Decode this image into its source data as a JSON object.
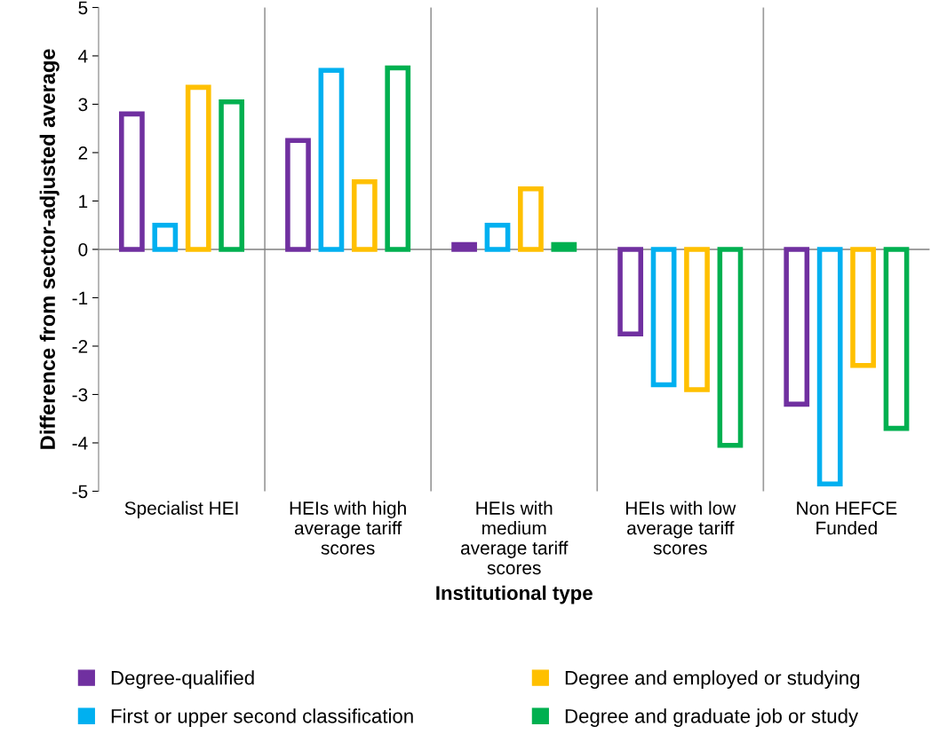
{
  "chart_data": {
    "type": "bar",
    "xlabel": "Institutional type",
    "ylabel": "Difference from sector-adjusted average",
    "categories": [
      "Specialist HEI",
      "HEIs with high\naverage tariff\nscores",
      "HEIs with\nmedium\naverage tariff\nscores",
      "HEIs with low\naverage tariff\nscores",
      "Non HEFCE\nFunded"
    ],
    "series": [
      {
        "name": "Degree-qualified",
        "color": "#7030a0",
        "values": [
          2.8,
          2.25,
          0.1,
          -1.75,
          -3.2
        ]
      },
      {
        "name": "First or upper second classification",
        "color": "#00b0f0",
        "values": [
          0.5,
          3.7,
          0.5,
          -2.8,
          -4.85
        ]
      },
      {
        "name": "Degree and employed or studying",
        "color": "#ffc000",
        "values": [
          3.35,
          1.4,
          1.25,
          -2.9,
          -2.4
        ]
      },
      {
        "name": "Degree and graduate job or study",
        "color": "#00b050",
        "values": [
          3.05,
          3.75,
          0.1,
          -4.05,
          -3.7
        ]
      }
    ],
    "ylim": [
      -5,
      5
    ],
    "yticks": [
      5,
      4,
      3,
      2,
      1,
      0,
      -1,
      -2,
      -3,
      -4,
      -5
    ],
    "grid": "x",
    "legend": "bottom"
  }
}
